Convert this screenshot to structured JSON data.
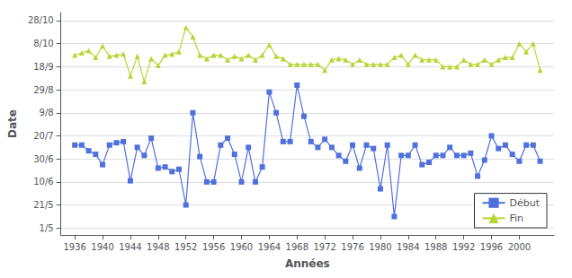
{
  "chart_data": {
    "type": "line",
    "xlabel": "Années",
    "ylabel": "Date",
    "xlim": [
      1934,
      2005
    ],
    "xticks": [
      1936,
      1940,
      1944,
      1948,
      1952,
      1956,
      1960,
      1964,
      1968,
      1972,
      1976,
      1980,
      1984,
      1988,
      1992,
      1996,
      2000
    ],
    "ylim": [
      115,
      308
    ],
    "yticks": [
      {
        "value": 121,
        "label": "1/5"
      },
      {
        "value": 141,
        "label": "21/5"
      },
      {
        "value": 161,
        "label": "10/6"
      },
      {
        "value": 181,
        "label": "30/6"
      },
      {
        "value": 201,
        "label": "20/7"
      },
      {
        "value": 221,
        "label": "9/8"
      },
      {
        "value": 241,
        "label": "29/8"
      },
      {
        "value": 261,
        "label": "18/9"
      },
      {
        "value": 281,
        "label": "8/10"
      },
      {
        "value": 301,
        "label": "28/10"
      }
    ],
    "grid": "y",
    "legend": "lower right",
    "x": [
      1936,
      1937,
      1938,
      1939,
      1940,
      1941,
      1942,
      1943,
      1944,
      1945,
      1946,
      1947,
      1948,
      1949,
      1950,
      1951,
      1952,
      1953,
      1954,
      1955,
      1956,
      1957,
      1958,
      1959,
      1960,
      1961,
      1962,
      1963,
      1964,
      1965,
      1966,
      1967,
      1968,
      1969,
      1970,
      1971,
      1972,
      1973,
      1974,
      1975,
      1976,
      1977,
      1978,
      1979,
      1980,
      1981,
      1982,
      1983,
      1984,
      1985,
      1986,
      1987,
      1988,
      1989,
      1990,
      1991,
      1992,
      1993,
      1994,
      1995,
      1996,
      1997,
      1998,
      1999,
      2000,
      2001,
      2002,
      2003
    ],
    "series": [
      {
        "name": "Début",
        "marker": "square",
        "values": [
          193,
          193,
          188,
          185,
          176,
          193,
          195,
          196,
          162,
          191,
          184,
          199,
          173,
          174,
          170,
          172,
          141,
          221,
          183,
          161,
          161,
          193,
          199,
          185,
          161,
          191,
          161,
          174,
          239,
          221,
          196,
          196,
          245,
          218,
          196,
          191,
          198,
          191,
          184,
          179,
          193,
          173,
          193,
          190,
          155,
          193,
          131,
          184,
          184,
          193,
          176,
          178,
          184,
          184,
          191,
          184,
          184,
          186,
          166,
          180,
          201,
          190,
          193,
          185,
          179,
          193,
          193,
          179
        ]
      },
      {
        "name": "Fin",
        "marker": "triangle",
        "values": [
          271,
          273,
          275,
          269,
          279,
          270,
          271,
          272,
          253,
          270,
          248,
          268,
          262,
          271,
          272,
          274,
          295,
          287,
          271,
          268,
          271,
          271,
          267,
          270,
          268,
          271,
          267,
          271,
          280,
          270,
          268,
          263,
          263,
          263,
          263,
          263,
          258,
          267,
          268,
          267,
          263,
          267,
          263,
          263,
          263,
          263,
          269,
          271,
          263,
          271,
          267,
          267,
          267,
          261,
          261,
          261,
          267,
          263,
          263,
          267,
          263,
          267,
          269,
          269,
          281,
          274,
          281,
          258
        ]
      }
    ]
  }
}
